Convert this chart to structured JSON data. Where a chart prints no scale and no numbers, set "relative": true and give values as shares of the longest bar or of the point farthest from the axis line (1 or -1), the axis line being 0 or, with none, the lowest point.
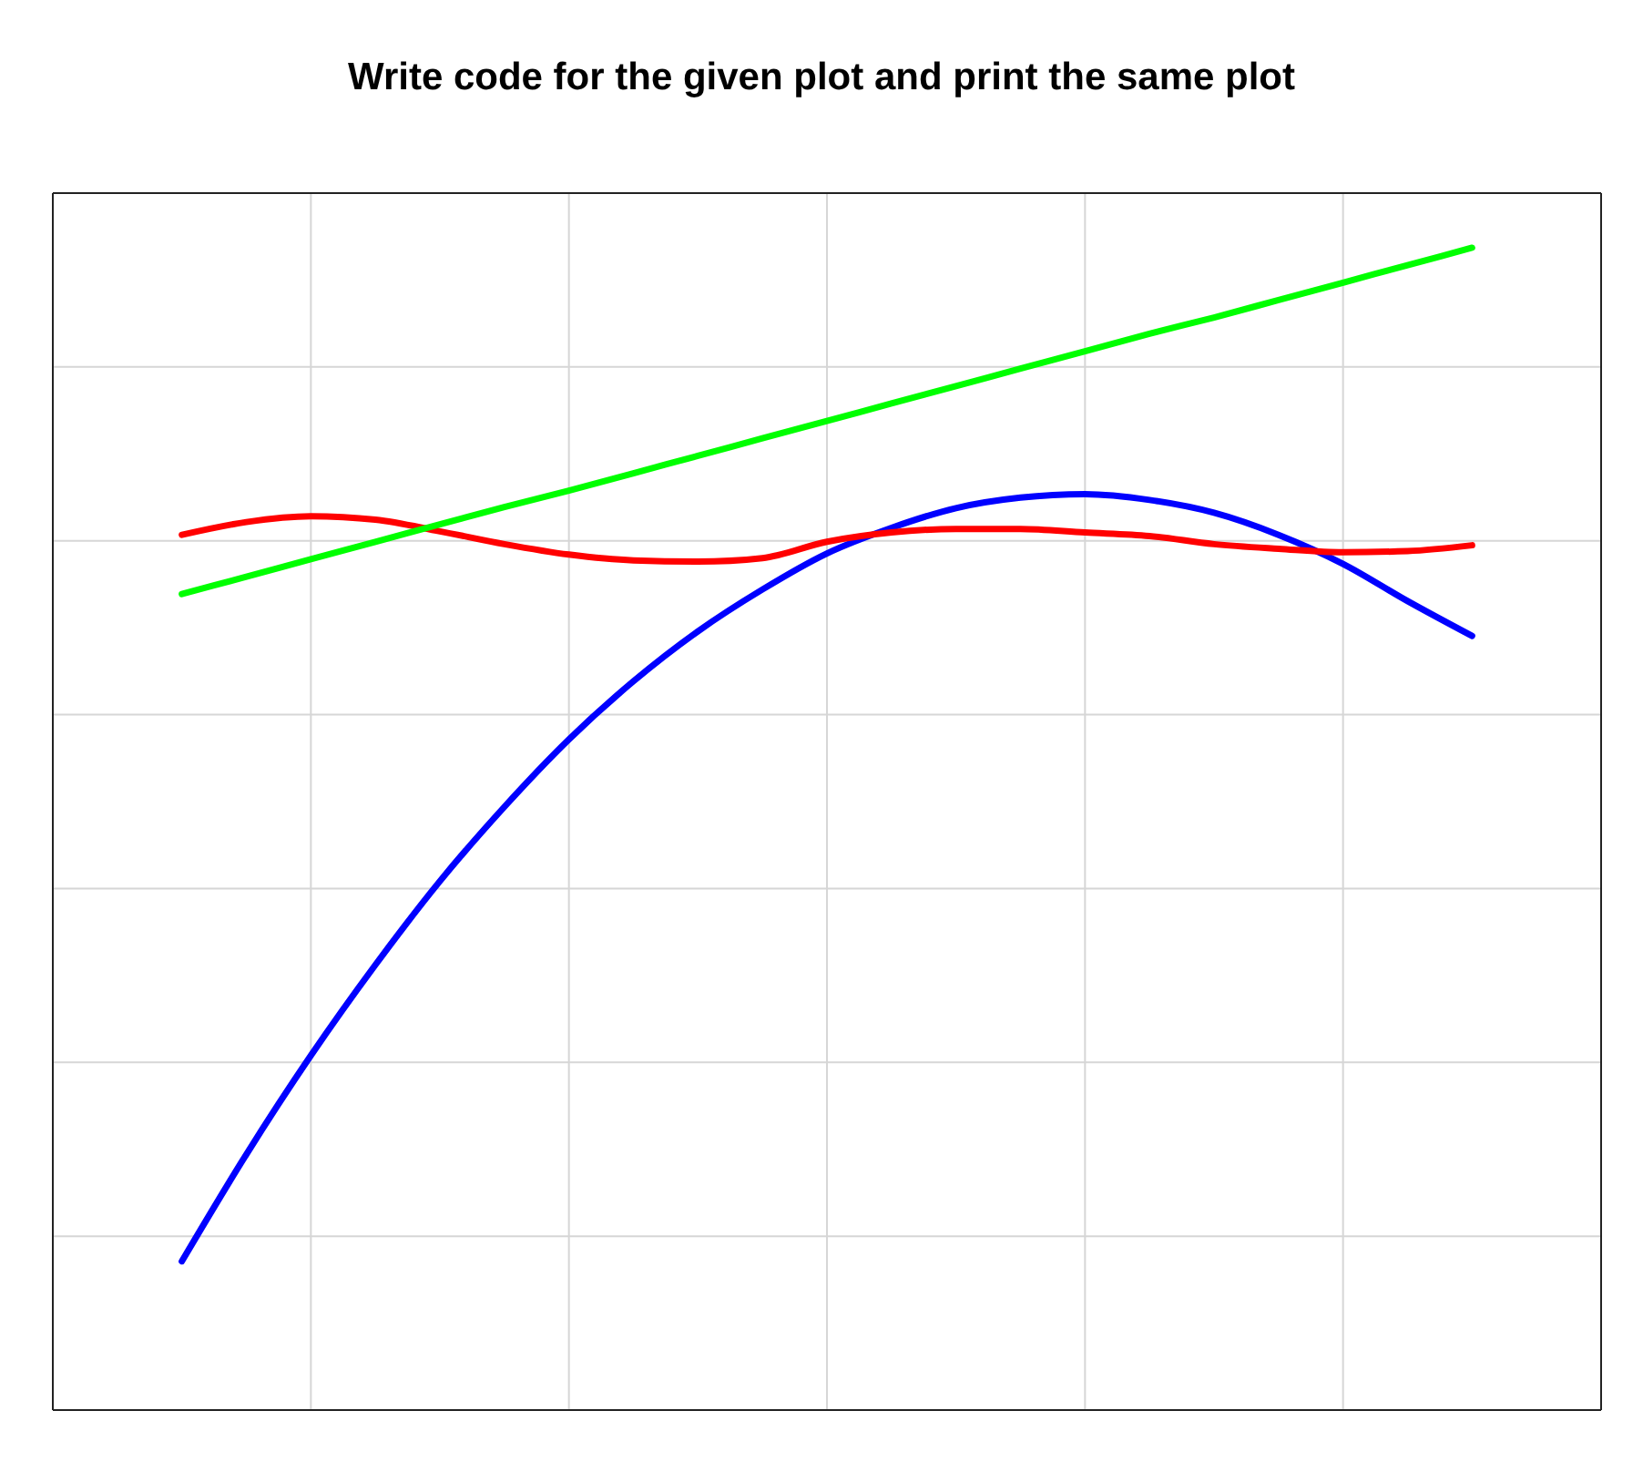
{
  "chart_data": {
    "type": "line",
    "title": "Write code for the given plot and print the same plot",
    "relative": true,
    "grid": true,
    "marker": "none",
    "line_style": "solid",
    "categories": [
      null,
      null,
      null,
      null,
      null,
      null,
      null,
      null,
      null,
      null,
      null,
      null,
      null,
      null,
      null,
      null,
      null,
      null,
      null,
      null,
      null
    ],
    "series": [
      {
        "color": "#0000ff",
        "values": [
          0.128,
          0.22,
          0.305,
          0.383,
          0.455,
          0.519,
          0.577,
          0.627,
          0.67,
          0.706,
          0.737,
          0.759,
          0.776,
          0.785,
          0.788,
          0.783,
          0.772,
          0.753,
          0.728,
          0.696,
          0.666
        ]
      },
      {
        "color": "#ff0000",
        "values": [
          0.753,
          0.764,
          0.769,
          0.766,
          0.756,
          0.745,
          0.736,
          0.731,
          0.73,
          0.733,
          0.747,
          0.755,
          0.758,
          0.758,
          0.755,
          0.752,
          0.745,
          0.741,
          0.738,
          0.739,
          0.744
        ]
      },
      {
        "color": "#00ff00",
        "values": [
          0.702,
          0.717,
          0.732,
          0.747,
          0.762,
          0.777,
          0.791,
          0.806,
          0.821,
          0.836,
          0.851,
          0.866,
          0.881,
          0.896,
          0.911,
          0.926,
          0.94,
          0.955,
          0.97,
          0.985,
          1.0
        ]
      }
    ]
  }
}
